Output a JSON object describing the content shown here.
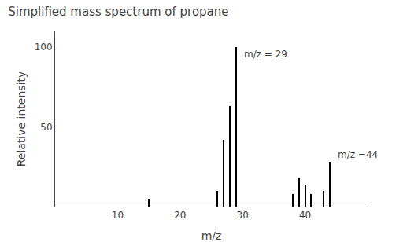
{
  "chart_data": {
    "type": "stem",
    "title": "Simplified mass spectrum of propane",
    "xlabel": "m/z",
    "ylabel": "Relative intensity",
    "x": [
      15,
      26,
      27,
      28,
      29,
      38,
      39,
      40,
      41,
      43,
      44
    ],
    "values": [
      5,
      10,
      42,
      63,
      100,
      8,
      18,
      14,
      8,
      10,
      28
    ],
    "color": "#000000",
    "xlim": [
      0,
      50
    ],
    "xticks": [
      10,
      20,
      30,
      40
    ],
    "ylim": [
      0,
      110
    ],
    "yticks": [
      50,
      100
    ],
    "grid": false,
    "annotations": [
      {
        "text": "m/z = 29",
        "x": 29,
        "y": 100,
        "position": "below"
      },
      {
        "text": "m/z =44",
        "x": 44,
        "y": 28,
        "position": "above"
      }
    ]
  }
}
